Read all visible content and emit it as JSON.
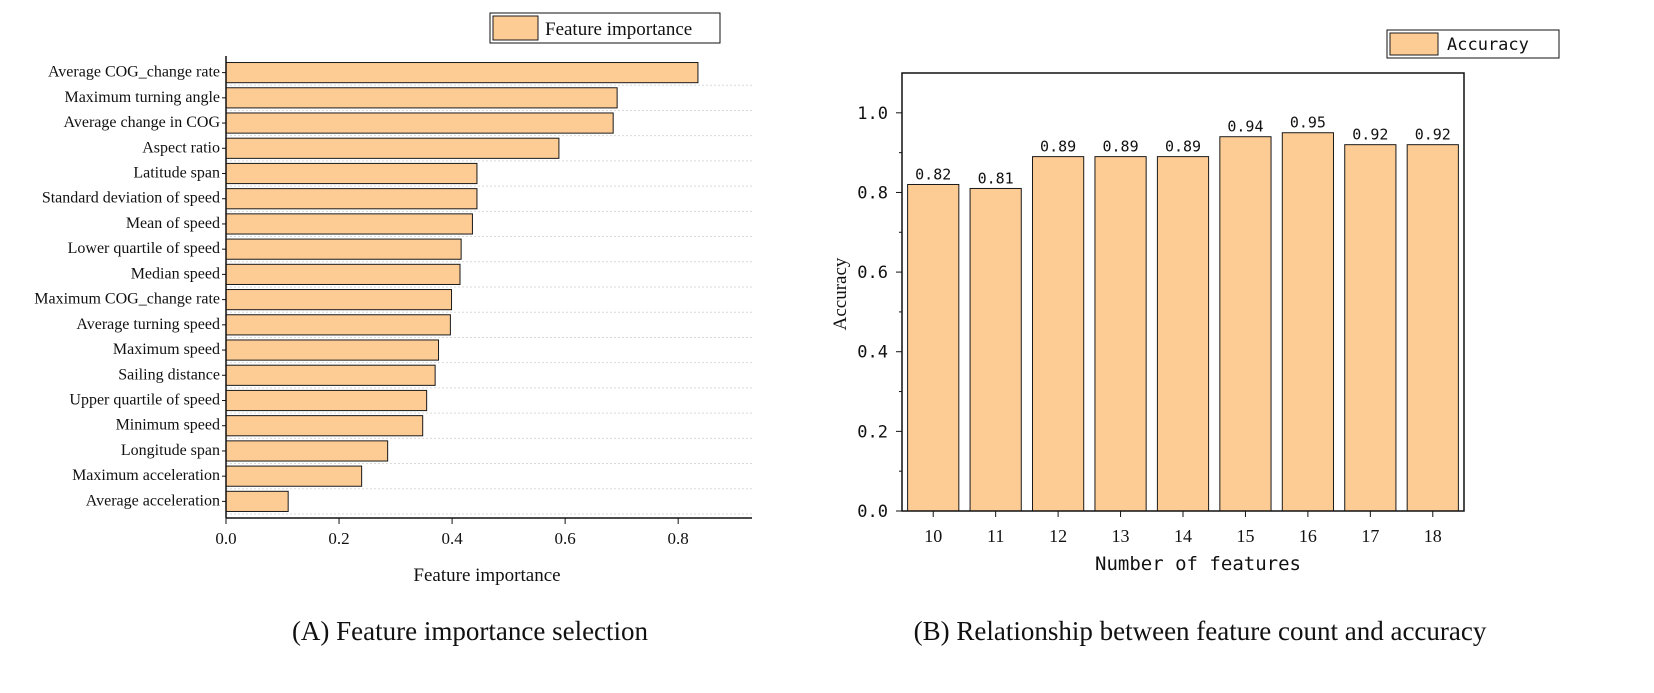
{
  "colors": {
    "bar_fill": "#FDCB94",
    "bar_stroke": "#1a1a1a",
    "grid": "#d9d9d9",
    "axis": "#111111",
    "background": "#ffffff"
  },
  "chart_data": [
    {
      "type": "bar",
      "orientation": "horizontal",
      "caption": "(A) Feature importance selection",
      "legend": "Feature importance",
      "legend_position": "top-right",
      "xlabel": "Feature importance",
      "ylabel": "",
      "xlim": [
        0,
        0.92
      ],
      "xticks": [
        "0.0",
        "0.2",
        "0.4",
        "0.6",
        "0.8"
      ],
      "grid": true,
      "categories": [
        "Average COG_change rate",
        "Maximum turning angle",
        "Average change in COG",
        "Aspect ratio",
        "Latitude span",
        "Standard deviation of speed",
        "Mean of speed",
        "Lower quartile of speed",
        "Median speed",
        "Maximum COG_change rate",
        "Average turning speed",
        "Maximum speed",
        "Sailing distance",
        "Upper quartile of speed",
        "Minimum speed",
        "Longitude span",
        "Maximum acceleration",
        "Average acceleration"
      ],
      "values": [
        0.835,
        0.692,
        0.685,
        0.589,
        0.444,
        0.444,
        0.436,
        0.416,
        0.414,
        0.399,
        0.397,
        0.376,
        0.37,
        0.355,
        0.348,
        0.286,
        0.24,
        0.11
      ]
    },
    {
      "type": "bar",
      "orientation": "vertical",
      "caption": "(B) Relationship between feature count and accuracy",
      "legend": "Accuracy",
      "legend_position": "top-right",
      "xlabel": "Number of features",
      "ylabel": "Accuracy",
      "ylim": [
        0,
        1.1
      ],
      "yticks": [
        "0.0",
        "0.2",
        "0.4",
        "0.6",
        "0.8",
        "1.0"
      ],
      "grid": false,
      "categories": [
        "10",
        "11",
        "12",
        "13",
        "14",
        "15",
        "16",
        "17",
        "18"
      ],
      "values": [
        0.82,
        0.81,
        0.89,
        0.89,
        0.89,
        0.94,
        0.95,
        0.92,
        0.92
      ],
      "data_labels": [
        "0.82",
        "0.81",
        "0.89",
        "0.89",
        "0.89",
        "0.94",
        "0.95",
        "0.92",
        "0.92"
      ]
    }
  ]
}
